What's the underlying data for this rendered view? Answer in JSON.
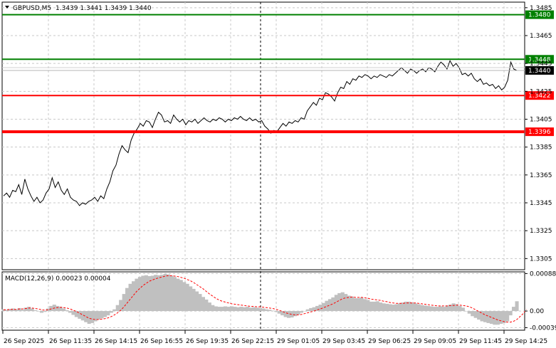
{
  "header": {
    "symbol": "GBPUSD,M5",
    "ohlc": "1.3439 1.3441 1.3439 1.3440"
  },
  "macd_header": "MACD(12,26,9) 0.00023 0.00004",
  "chart_data": [
    {
      "type": "line",
      "title": "GBPUSD,M5",
      "ylim": [
        1.3297,
        1.3489
      ],
      "y_ticks": [
        "1.3485",
        "1.3465",
        "1.3445",
        "1.3425",
        "1.3405",
        "1.3385",
        "1.3365",
        "1.3345",
        "1.3325",
        "1.3305"
      ],
      "x_ticks": [
        "26 Sep 2025",
        "26 Sep 11:35",
        "26 Sep 14:15",
        "26 Sep 16:55",
        "26 Sep 19:35",
        "26 Sep 22:15",
        "29 Sep 01:05",
        "29 Sep 03:45",
        "29 Sep 06:25",
        "29 Sep 09:05",
        "29 Sep 11:45",
        "29 Sep 14:25"
      ],
      "series": [
        {
          "values": [
            1.335,
            1.3352,
            1.3349,
            1.3354,
            1.3353,
            1.3358,
            1.3351,
            1.3362,
            1.3355,
            1.335,
            1.3346,
            1.3349,
            1.3345,
            1.3347,
            1.3352,
            1.3355,
            1.3363,
            1.3356,
            1.336,
            1.3354,
            1.3351,
            1.3355,
            1.3349,
            1.3347,
            1.3346,
            1.3343,
            1.3345,
            1.3344,
            1.3346,
            1.3347,
            1.3349,
            1.3346,
            1.335,
            1.3348,
            1.3355,
            1.336,
            1.3368,
            1.3372,
            1.338,
            1.3386,
            1.3383,
            1.3381,
            1.339,
            1.3395,
            1.3398,
            1.3402,
            1.34,
            1.3404,
            1.3403,
            1.3399,
            1.3405,
            1.341,
            1.3408,
            1.3403,
            1.3404,
            1.3402,
            1.3408,
            1.3405,
            1.3403,
            1.3405,
            1.3401,
            1.3404,
            1.3403,
            1.3405,
            1.3402,
            1.3404,
            1.3406,
            1.3404,
            1.3403,
            1.3405,
            1.3404,
            1.3406,
            1.3405,
            1.3403,
            1.3405,
            1.3404,
            1.3406,
            1.3405,
            1.3407,
            1.3405,
            1.3404,
            1.3406,
            1.3404,
            1.3405,
            1.3403,
            1.3404,
            1.34,
            1.3398,
            1.3395,
            1.3397,
            1.3396,
            1.3399,
            1.3402,
            1.34,
            1.3403,
            1.3402,
            1.3404,
            1.3403,
            1.3406,
            1.3405,
            1.3411,
            1.3414,
            1.3417,
            1.3415,
            1.342,
            1.3419,
            1.3424,
            1.3423,
            1.3421,
            1.3418,
            1.3424,
            1.3428,
            1.3427,
            1.3432,
            1.343,
            1.3434,
            1.3433,
            1.3436,
            1.3435,
            1.3437,
            1.3436,
            1.3434,
            1.3436,
            1.3435,
            1.3437,
            1.3436,
            1.3435,
            1.3437,
            1.3436,
            1.3438,
            1.344,
            1.3442,
            1.344,
            1.3438,
            1.3441,
            1.344,
            1.3438,
            1.344,
            1.3441,
            1.3439,
            1.3442,
            1.3441,
            1.3439,
            1.3443,
            1.3446,
            1.3444,
            1.3441,
            1.3447,
            1.3443,
            1.3445,
            1.3442,
            1.3437,
            1.3438,
            1.3436,
            1.3438,
            1.3434,
            1.3432,
            1.3434,
            1.343,
            1.3431,
            1.3429,
            1.343,
            1.3427,
            1.3429,
            1.3426,
            1.3428,
            1.3433,
            1.3446,
            1.3441,
            1.344
          ]
        }
      ],
      "levels": [
        {
          "value": 1.348,
          "label": "1.3480",
          "color": "#008000"
        },
        {
          "value": 1.3448,
          "label": "1.3448",
          "color": "#008000"
        },
        {
          "value": 1.3422,
          "label": "1.3422",
          "color": "#ff0000"
        },
        {
          "value": 1.3396,
          "label": "1.3396",
          "color": "#ff0000"
        }
      ],
      "current_price": {
        "value": 1.344,
        "label": "1.3440"
      },
      "grid": true
    },
    {
      "type": "bar",
      "title": "MACD(12,26,9) 0.00023 0.00004",
      "ylim": [
        -0.00045,
        0.00092
      ],
      "y_ticks": [
        "0.00088",
        "0.00",
        "-0.00039"
      ],
      "series": [
        {
          "name": "MACD",
          "color": "#c0c0c0",
          "values": [
            4e-05,
            3e-05,
            5e-05,
            6e-05,
            4e-05,
            7e-05,
            3e-05,
            8e-05,
            0.0001,
            6e-05,
            2e-05,
            0.0,
            -4e-05,
            -2e-05,
            6e-05,
            0.00012,
            0.00015,
            0.00012,
            0.0001,
            6e-05,
            2e-05,
            -4e-05,
            -9e-05,
            -0.00014,
            -0.00018,
            -0.00022,
            -0.00026,
            -0.0003,
            -0.00028,
            -0.00024,
            -0.0002,
            -0.00017,
            -0.00014,
            -0.0001,
            -4e-05,
            4e-05,
            0.00014,
            0.00026,
            0.0004,
            0.00054,
            0.00064,
            0.0007,
            0.00076,
            0.0008,
            0.00083,
            0.00084,
            0.00082,
            0.00083,
            0.00085,
            0.00084,
            0.00085,
            0.00087,
            0.00086,
            0.00083,
            0.0008,
            0.00076,
            0.00073,
            0.00068,
            0.00064,
            0.00058,
            0.00052,
            0.00046,
            0.0004,
            0.00033,
            0.00027,
            0.0002,
            0.00014,
            0.00011,
            0.0001,
            0.0001,
            0.00011,
            0.0001,
            0.00011,
            0.0001,
            9e-05,
            0.0001,
            9e-05,
            0.0001,
            8e-05,
            9e-05,
            8e-05,
            7e-05,
            6e-05,
            4e-05,
            3e-05,
            1e-05,
            -2e-05,
            -6e-05,
            -0.0001,
            -0.00014,
            -0.00016,
            -0.00015,
            -0.00012,
            -8e-05,
            -4e-05,
            0.0,
            4e-05,
            7e-05,
            9e-05,
            0.00012,
            0.00015,
            0.00019,
            0.00024,
            0.00028,
            0.00032,
            0.00038,
            0.00042,
            0.00044,
            0.0004,
            0.00036,
            0.00034,
            0.0003,
            0.0003,
            0.00032,
            0.00028,
            0.00026,
            0.00022,
            0.00022,
            0.00023,
            0.0002,
            0.00018,
            0.00017,
            0.00016,
            0.00015,
            0.00016,
            0.00018,
            0.0002,
            0.00022,
            0.00022,
            0.0002,
            0.00018,
            0.00016,
            0.00014,
            0.00013,
            0.00012,
            0.00011,
            0.0001,
            0.0001,
            0.00011,
            0.0001,
            0.00013,
            0.00015,
            0.00018,
            0.00016,
            0.00012,
            8e-05,
            0.0,
            -6e-05,
            -0.00012,
            -0.00016,
            -0.0002,
            -0.00024,
            -0.00026,
            -0.00028,
            -0.0003,
            -0.00032,
            -0.00032,
            -0.0003,
            -0.00028,
            -0.00024,
            -0.0001,
            0.0001,
            0.00023
          ]
        },
        {
          "name": "Signal",
          "color": "#ff0000",
          "values": [
            3e-05,
            3e-05,
            4e-05,
            4e-05,
            4e-05,
            5e-05,
            5e-05,
            6e-05,
            7e-05,
            7e-05,
            6e-05,
            5e-05,
            3e-05,
            2e-05,
            3e-05,
            5e-05,
            7e-05,
            8e-05,
            9e-05,
            8e-05,
            7e-05,
            5e-05,
            2e-05,
            -1e-05,
            -5e-05,
            -9e-05,
            -0.00013,
            -0.00017,
            -0.00019,
            -0.0002,
            -0.0002,
            -0.00019,
            -0.00018,
            -0.00016,
            -0.00013,
            -9e-05,
            -4e-05,
            2e-05,
            0.0001,
            0.00019,
            0.00028,
            0.00037,
            0.00046,
            0.00053,
            0.0006,
            0.00065,
            0.0007,
            0.00073,
            0.00076,
            0.00078,
            0.0008,
            0.00082,
            0.00083,
            0.00083,
            0.00082,
            0.00081,
            0.00079,
            0.00077,
            0.00074,
            0.00071,
            0.00067,
            0.00062,
            0.00057,
            0.00052,
            0.00046,
            0.0004,
            0.00035,
            0.0003,
            0.00026,
            0.00023,
            0.00021,
            0.00019,
            0.00017,
            0.00016,
            0.00015,
            0.00014,
            0.00013,
            0.00012,
            0.00011,
            0.00011,
            0.0001,
            0.0001,
            9e-05,
            8e-05,
            7e-05,
            6e-05,
            4e-05,
            2e-05,
            -1e-05,
            -4e-05,
            -6e-05,
            -8e-05,
            -9e-05,
            -9e-05,
            -8e-05,
            -6e-05,
            -4e-05,
            -2e-05,
            0.0,
            3e-05,
            5e-05,
            8e-05,
            0.00011,
            0.00014,
            0.00017,
            0.00021,
            0.00025,
            0.00029,
            0.00031,
            0.00032,
            0.00033,
            0.00032,
            0.00032,
            0.00032,
            0.00031,
            0.0003,
            0.00028,
            0.00027,
            0.00026,
            0.00025,
            0.00023,
            0.00022,
            0.0002,
            0.00019,
            0.00018,
            0.00018,
            0.00018,
            0.00019,
            0.00019,
            0.00019,
            0.00019,
            0.00018,
            0.00017,
            0.00016,
            0.00015,
            0.00014,
            0.00013,
            0.00012,
            0.00012,
            0.00012,
            0.00012,
            0.00013,
            0.00013,
            0.00014,
            0.00014,
            0.00013,
            0.00012,
            0.0001,
            7e-05,
            3e-05,
            -1e-05,
            -5e-05,
            -9e-05,
            -0.00012,
            -0.00015,
            -0.00018,
            -0.00021,
            -0.00023,
            -0.00025,
            -0.00026,
            -0.00026,
            -0.00024,
            -0.0002,
            -0.00013,
            -6e-05,
            4e-05
          ]
        }
      ],
      "grid": true
    }
  ]
}
